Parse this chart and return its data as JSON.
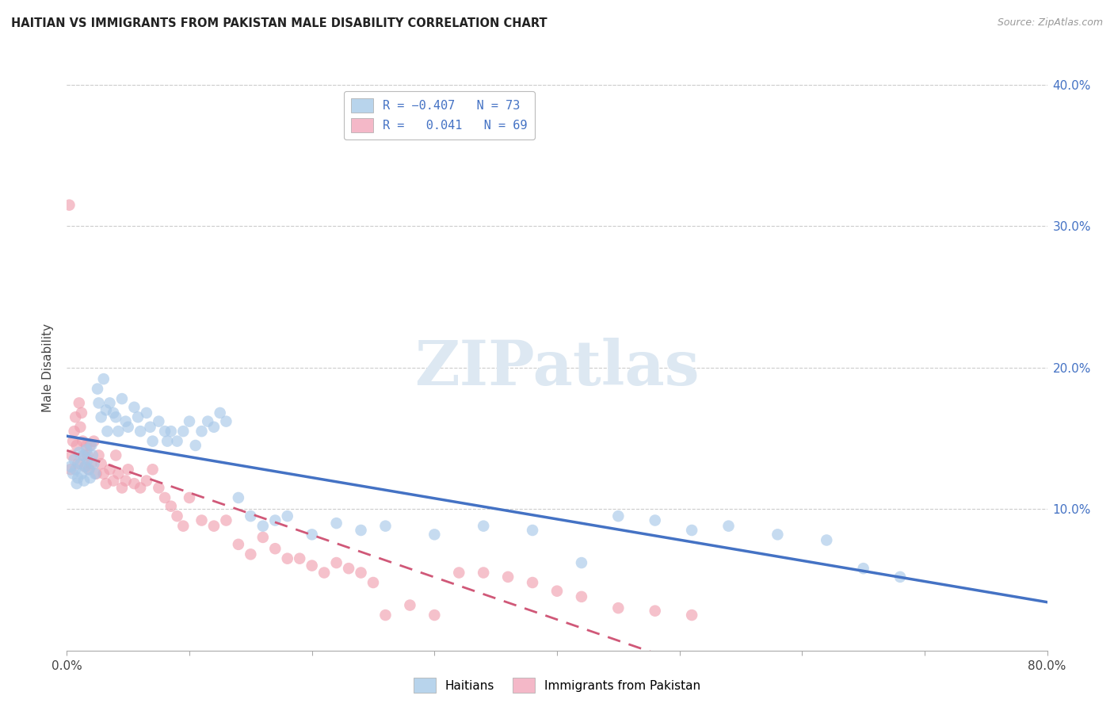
{
  "title": "HAITIAN VS IMMIGRANTS FROM PAKISTAN MALE DISABILITY CORRELATION CHART",
  "source": "Source: ZipAtlas.com",
  "ylabel": "Male Disability",
  "x_min": 0.0,
  "x_max": 0.8,
  "y_min": 0.0,
  "y_max": 0.4,
  "x_ticks": [
    0.0,
    0.1,
    0.2,
    0.3,
    0.4,
    0.5,
    0.6,
    0.7,
    0.8
  ],
  "y_ticks": [
    0.0,
    0.1,
    0.2,
    0.3,
    0.4
  ],
  "y_tick_labels_right": [
    "",
    "10.0%",
    "20.0%",
    "30.0%",
    "40.0%"
  ],
  "legend_labels_bottom": [
    "Haitians",
    "Immigrants from Pakistan"
  ],
  "haiti_color": "#a8c8e8",
  "pakistan_color": "#f0a0b0",
  "haiti_line_color": "#4472c4",
  "pakistan_line_color": "#d05878",
  "watermark_text": "ZIPatlas",
  "haiti_scatter_x": [
    0.003,
    0.005,
    0.006,
    0.007,
    0.008,
    0.009,
    0.01,
    0.011,
    0.012,
    0.013,
    0.014,
    0.015,
    0.016,
    0.017,
    0.018,
    0.019,
    0.02,
    0.021,
    0.022,
    0.023,
    0.025,
    0.026,
    0.028,
    0.03,
    0.032,
    0.033,
    0.035,
    0.038,
    0.04,
    0.042,
    0.045,
    0.048,
    0.05,
    0.055,
    0.058,
    0.06,
    0.065,
    0.068,
    0.07,
    0.075,
    0.08,
    0.082,
    0.085,
    0.09,
    0.095,
    0.1,
    0.105,
    0.11,
    0.115,
    0.12,
    0.125,
    0.13,
    0.14,
    0.15,
    0.16,
    0.17,
    0.18,
    0.2,
    0.22,
    0.24,
    0.26,
    0.3,
    0.34,
    0.38,
    0.42,
    0.45,
    0.48,
    0.51,
    0.54,
    0.58,
    0.62,
    0.65,
    0.68
  ],
  "haiti_scatter_y": [
    0.13,
    0.125,
    0.135,
    0.128,
    0.118,
    0.122,
    0.14,
    0.132,
    0.125,
    0.138,
    0.12,
    0.13,
    0.142,
    0.135,
    0.128,
    0.122,
    0.145,
    0.138,
    0.132,
    0.125,
    0.185,
    0.175,
    0.165,
    0.192,
    0.17,
    0.155,
    0.175,
    0.168,
    0.165,
    0.155,
    0.178,
    0.162,
    0.158,
    0.172,
    0.165,
    0.155,
    0.168,
    0.158,
    0.148,
    0.162,
    0.155,
    0.148,
    0.155,
    0.148,
    0.155,
    0.162,
    0.145,
    0.155,
    0.162,
    0.158,
    0.168,
    0.162,
    0.108,
    0.095,
    0.088,
    0.092,
    0.095,
    0.082,
    0.09,
    0.085,
    0.088,
    0.082,
    0.088,
    0.085,
    0.062,
    0.095,
    0.092,
    0.085,
    0.088,
    0.082,
    0.078,
    0.058,
    0.052
  ],
  "pakistan_scatter_x": [
    0.002,
    0.003,
    0.004,
    0.005,
    0.006,
    0.007,
    0.008,
    0.009,
    0.01,
    0.011,
    0.012,
    0.013,
    0.014,
    0.015,
    0.016,
    0.017,
    0.018,
    0.019,
    0.02,
    0.022,
    0.024,
    0.026,
    0.028,
    0.03,
    0.032,
    0.035,
    0.038,
    0.04,
    0.042,
    0.045,
    0.048,
    0.05,
    0.055,
    0.06,
    0.065,
    0.07,
    0.075,
    0.08,
    0.085,
    0.09,
    0.095,
    0.1,
    0.11,
    0.12,
    0.13,
    0.14,
    0.15,
    0.16,
    0.17,
    0.18,
    0.19,
    0.2,
    0.21,
    0.22,
    0.23,
    0.24,
    0.25,
    0.26,
    0.28,
    0.3,
    0.32,
    0.34,
    0.36,
    0.38,
    0.4,
    0.42,
    0.45,
    0.48,
    0.51
  ],
  "pakistan_scatter_y": [
    0.315,
    0.128,
    0.138,
    0.148,
    0.155,
    0.165,
    0.145,
    0.132,
    0.175,
    0.158,
    0.168,
    0.148,
    0.138,
    0.13,
    0.145,
    0.138,
    0.128,
    0.145,
    0.132,
    0.148,
    0.125,
    0.138,
    0.132,
    0.125,
    0.118,
    0.128,
    0.12,
    0.138,
    0.125,
    0.115,
    0.12,
    0.128,
    0.118,
    0.115,
    0.12,
    0.128,
    0.115,
    0.108,
    0.102,
    0.095,
    0.088,
    0.108,
    0.092,
    0.088,
    0.092,
    0.075,
    0.068,
    0.08,
    0.072,
    0.065,
    0.065,
    0.06,
    0.055,
    0.062,
    0.058,
    0.055,
    0.048,
    0.025,
    0.032,
    0.025,
    0.055,
    0.055,
    0.052,
    0.048,
    0.042,
    0.038,
    0.03,
    0.028,
    0.025
  ]
}
